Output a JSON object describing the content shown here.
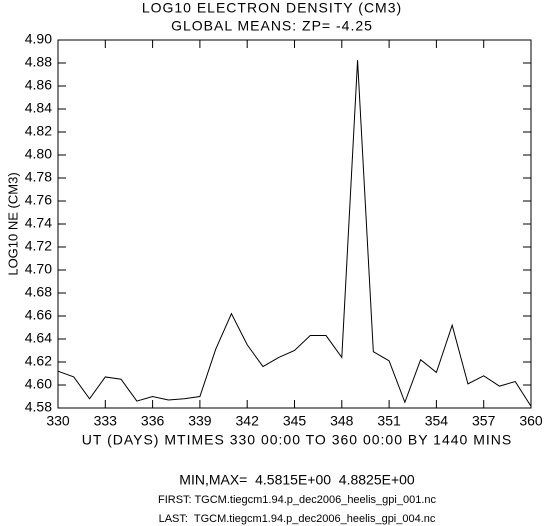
{
  "chart_data": {
    "type": "line",
    "title": "LOG10 ELECTRON DENSITY (CM3)",
    "subtitle": "GLOBAL MEANS: ZP= -4.25",
    "x_label": "UT (DAYS) MTIMES 330 00:00 TO 360 00:00 BY 1440 MINS",
    "y_label": "LOG10 NE (CM3)",
    "annotations": [
      "MIN,MAX=  4.5815E+00  4.8825E+00",
      "FIRST: TGCM.tiegcm1.94.p_dec2006_heelis_gpi_001.nc",
      "LAST:  TGCM.tiegcm1.94.p_dec2006_heelis_gpi_004.nc"
    ],
    "x": [
      330,
      331,
      332,
      333,
      334,
      335,
      336,
      337,
      338,
      339,
      340,
      341,
      342,
      343,
      344,
      345,
      346,
      347,
      348,
      349,
      350,
      351,
      352,
      353,
      354,
      355,
      356,
      357,
      358,
      359,
      360
    ],
    "series": [
      {
        "name": "NE",
        "color": "#000000",
        "values": [
          4.612,
          4.607,
          4.588,
          4.607,
          4.605,
          4.586,
          4.59,
          4.587,
          4.588,
          4.59,
          4.631,
          4.662,
          4.635,
          4.616,
          4.624,
          4.63,
          4.643,
          4.643,
          4.624,
          4.8825,
          4.629,
          4.621,
          4.585,
          4.622,
          4.611,
          4.652,
          4.601,
          4.608,
          4.599,
          4.603,
          4.5815
        ]
      }
    ],
    "xlim": [
      330,
      360
    ],
    "xticks": [
      330,
      333,
      336,
      339,
      342,
      345,
      348,
      351,
      354,
      357,
      360
    ],
    "ylim": [
      4.58,
      4.9
    ],
    "yticks": [
      4.58,
      {
        "value": 4.6,
        "label": "4.60"
      },
      4.62,
      4.64,
      4.66,
      4.68,
      {
        "value": 4.7,
        "label": "4.70"
      },
      4.72,
      4.74,
      4.76,
      4.78,
      {
        "value": 4.8,
        "label": "4.80"
      },
      4.82,
      4.84,
      4.86,
      4.88,
      {
        "value": 4.9,
        "label": "4.90"
      }
    ],
    "grid": false
  }
}
